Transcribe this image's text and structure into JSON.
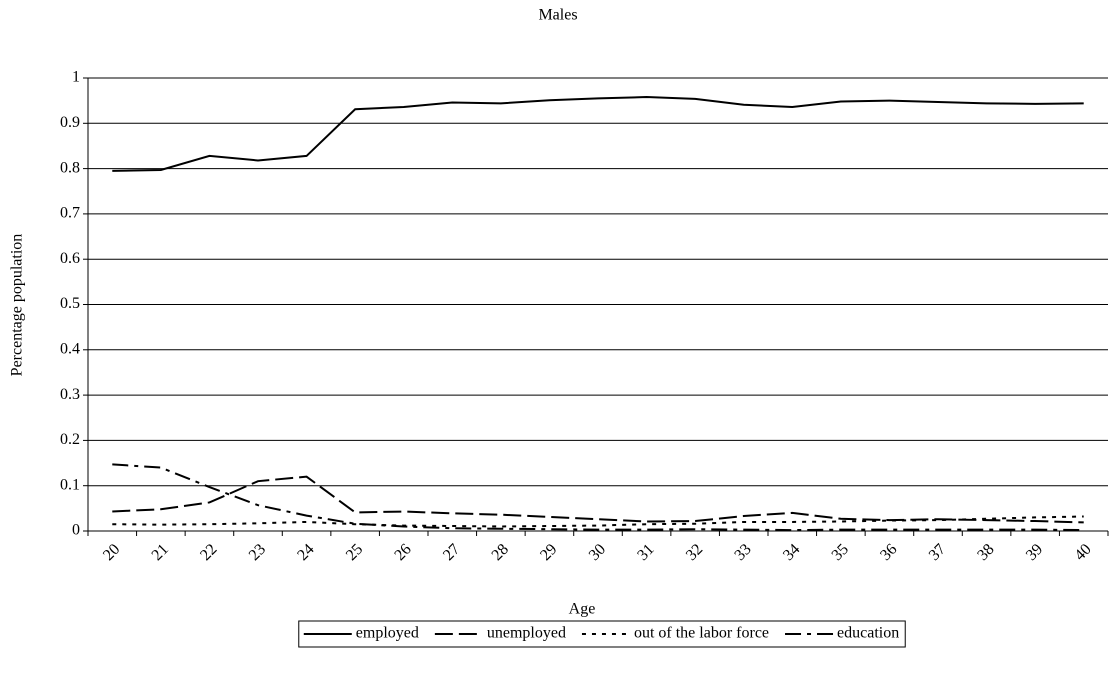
{
  "chart_data": {
    "type": "line",
    "title": "Males",
    "x_label": "Age",
    "y_label": "Percentage population",
    "categories": [
      "20",
      "21",
      "22",
      "23",
      "24",
      "25",
      "26",
      "27",
      "28",
      "29",
      "30",
      "31",
      "32",
      "33",
      "34",
      "35",
      "36",
      "37",
      "38",
      "39",
      "40"
    ],
    "series": [
      {
        "name": "employed",
        "color": "#000000",
        "dash": "solid",
        "values": [
          0.795,
          0.797,
          0.828,
          0.818,
          0.828,
          0.931,
          0.936,
          0.946,
          0.944,
          0.951,
          0.955,
          0.958,
          0.954,
          0.941,
          0.936,
          0.948,
          0.95,
          0.947,
          0.944,
          0.943,
          0.944
        ]
      },
      {
        "name": "unemployed",
        "color": "#000000",
        "dash": "dashed",
        "values": [
          0.043,
          0.048,
          0.063,
          0.11,
          0.12,
          0.041,
          0.043,
          0.039,
          0.036,
          0.031,
          0.026,
          0.021,
          0.022,
          0.033,
          0.04,
          0.027,
          0.024,
          0.026,
          0.024,
          0.022,
          0.019
        ]
      },
      {
        "name": "out of the labor force",
        "color": "#000000",
        "dash": "dotted",
        "values": [
          0.015,
          0.014,
          0.015,
          0.017,
          0.02,
          0.015,
          0.012,
          0.011,
          0.01,
          0.011,
          0.012,
          0.015,
          0.016,
          0.02,
          0.02,
          0.021,
          0.023,
          0.024,
          0.027,
          0.03,
          0.032
        ]
      },
      {
        "name": "education",
        "color": "#000000",
        "dash": "dashdot",
        "values": [
          0.147,
          0.14,
          0.097,
          0.057,
          0.034,
          0.016,
          0.01,
          0.006,
          0.005,
          0.004,
          0.003,
          0.003,
          0.004,
          0.003,
          0.002,
          0.003,
          0.003,
          0.003,
          0.003,
          0.003,
          0.002
        ]
      }
    ],
    "ylim": [
      0,
      1
    ],
    "yticks": [
      0,
      0.1,
      0.2,
      0.3,
      0.4,
      0.5,
      0.6,
      0.7,
      0.8,
      0.9,
      1
    ],
    "grid": true,
    "legend": "bottom"
  }
}
